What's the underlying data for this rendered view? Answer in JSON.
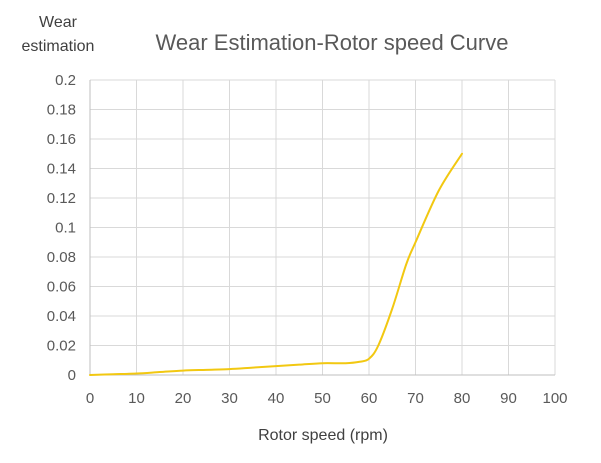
{
  "chart_data": {
    "type": "line",
    "title": "Wear Estimation-Rotor speed Curve",
    "ylabel_line1": "Wear",
    "ylabel_line2": "estimation",
    "xlabel": "Rotor speed (rpm)",
    "xlim": [
      0,
      100
    ],
    "ylim": [
      0,
      0.2
    ],
    "x_ticks": [
      "0",
      "10",
      "20",
      "30",
      "40",
      "50",
      "60",
      "70",
      "80",
      "90",
      "100"
    ],
    "y_ticks": [
      "0",
      "0.02",
      "0.04",
      "0.06",
      "0.08",
      "0.1",
      "0.12",
      "0.14",
      "0.16",
      "0.18",
      "0.2"
    ],
    "grid": true,
    "legend": "none",
    "series": [
      {
        "name": "Wear estimation",
        "color": "#f2c811",
        "x": [
          0,
          5,
          10,
          15,
          20,
          25,
          30,
          35,
          40,
          45,
          50,
          55,
          58,
          60,
          62,
          65,
          68,
          70,
          75,
          80
        ],
        "y": [
          0.0,
          0.0005,
          0.001,
          0.002,
          0.003,
          0.0035,
          0.004,
          0.005,
          0.006,
          0.007,
          0.008,
          0.008,
          0.009,
          0.011,
          0.02,
          0.045,
          0.075,
          0.09,
          0.125,
          0.15
        ]
      }
    ]
  }
}
